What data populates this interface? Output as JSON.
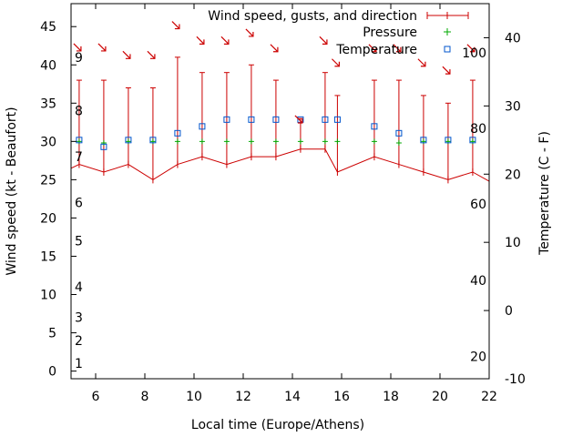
{
  "chart_data": {
    "type": "line",
    "title": "",
    "xlabel": "Local time (Europe/Athens)",
    "ylabel_left": "Wind speed (kt - Beaufort)",
    "ylabel_right": "Temperature (C - F)",
    "xlim": [
      5,
      22
    ],
    "x_ticks": [
      6,
      8,
      10,
      12,
      14,
      16,
      18,
      20,
      22
    ],
    "ylim_left": [
      -1,
      48
    ],
    "y_ticks_left": [
      0,
      5,
      10,
      15,
      20,
      25,
      30,
      35,
      40,
      45
    ],
    "ylim_right": [
      -10,
      45
    ],
    "y_ticks_right": [
      -10,
      0,
      10,
      20,
      30,
      40
    ],
    "beaufort_labels": [
      {
        "label": "1",
        "at": 1
      },
      {
        "label": "2",
        "at": 4
      },
      {
        "label": "3",
        "at": 7
      },
      {
        "label": "4",
        "at": 11
      },
      {
        "label": "5",
        "at": 17
      },
      {
        "label": "6",
        "at": 22
      },
      {
        "label": "7",
        "at": 28
      },
      {
        "label": "8",
        "at": 34
      },
      {
        "label": "9",
        "at": 41
      }
    ],
    "fahrenheit_labels": [
      {
        "label": "20",
        "at": -6.7
      },
      {
        "label": "40",
        "at": 4.4
      },
      {
        "label": "60",
        "at": 15.6
      },
      {
        "label": "80",
        "at": 26.7
      },
      {
        "label": "100",
        "at": 37.8
      }
    ],
    "legend": [
      "Wind speed, gusts, and direction",
      "Pressure",
      "Temperature"
    ],
    "legend_position": "top-right",
    "colors": {
      "wind": "#cc0000",
      "pressure": "#00aa00",
      "temperature": "#0055cc"
    },
    "series": [
      {
        "name": "Wind speed, gusts, and direction",
        "axis": "left",
        "x": [
          5.33,
          6.33,
          7.33,
          8.33,
          9.33,
          10.33,
          11.33,
          12.33,
          13.33,
          14.33,
          15.33,
          15.83,
          17.33,
          18.33,
          19.33,
          20.33,
          21.33
        ],
        "values": [
          27,
          26,
          27,
          25,
          27,
          28,
          27,
          28,
          28,
          29,
          29,
          26,
          28,
          27,
          26,
          25,
          26
        ],
        "gusts": [
          38,
          38,
          37,
          37,
          41,
          39,
          39,
          40,
          38,
          33,
          39,
          36,
          38,
          38,
          36,
          35,
          38
        ],
        "direction_deg": [
          315,
          315,
          315,
          315,
          315,
          315,
          315,
          315,
          315,
          300,
          315,
          315,
          315,
          315,
          315,
          315,
          315
        ]
      },
      {
        "name": "Pressure",
        "axis": "left",
        "x": [
          5.33,
          6.33,
          7.33,
          8.33,
          9.33,
          10.33,
          11.33,
          12.33,
          13.33,
          14.33,
          15.33,
          15.83,
          17.33,
          18.33,
          19.33,
          20.33,
          21.33
        ],
        "values": [
          30,
          29.8,
          30,
          30,
          30,
          30,
          30,
          30,
          30,
          30,
          30,
          30,
          30,
          29.8,
          30,
          30,
          30
        ]
      },
      {
        "name": "Temperature",
        "axis": "right",
        "x": [
          5.33,
          6.33,
          7.33,
          8.33,
          9.33,
          10.33,
          11.33,
          12.33,
          13.33,
          14.33,
          15.33,
          15.83,
          17.33,
          18.33,
          19.33,
          20.33,
          21.33
        ],
        "values": [
          25,
          24,
          25,
          25,
          26,
          27,
          28,
          28,
          28,
          28,
          28,
          28,
          27,
          26,
          25,
          25,
          25
        ]
      }
    ]
  }
}
